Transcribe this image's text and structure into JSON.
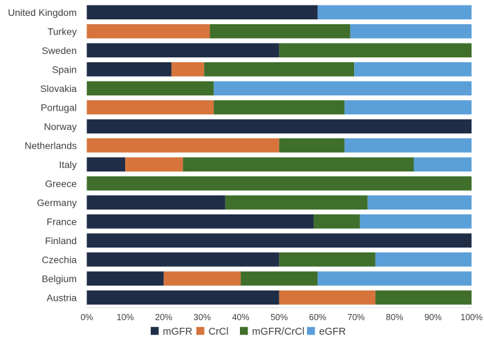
{
  "chart_data": {
    "type": "bar",
    "orientation": "horizontal",
    "stacked": true,
    "percent": true,
    "categories": [
      "United Kingdom",
      "Turkey",
      "Sweden",
      "Spain",
      "Slovakia",
      "Portugal",
      "Norway",
      "Netherlands",
      "Italy",
      "Greece",
      "Germany",
      "France",
      "Finland",
      "Czechia",
      "Belgium",
      "Austria"
    ],
    "series": [
      {
        "name": "mGFR",
        "color": "#1f2d47",
        "values": [
          60,
          0,
          50,
          22,
          0,
          0,
          100,
          0,
          10,
          0,
          36,
          59,
          100,
          50,
          20,
          50
        ]
      },
      {
        "name": "CrCl",
        "color": "#d6743c",
        "values": [
          0,
          32,
          0,
          8.5,
          0,
          33,
          0,
          50,
          15,
          0,
          0,
          0,
          0,
          0,
          20,
          25
        ]
      },
      {
        "name": "mGFR/CrCl",
        "color": "#3f6f2b",
        "values": [
          0,
          36.5,
          50,
          39,
          33,
          34,
          0,
          17,
          60,
          100,
          37,
          12,
          0,
          25,
          20,
          25
        ]
      },
      {
        "name": "eGFR",
        "color": "#5b9fd8",
        "values": [
          40,
          31.5,
          0,
          30.5,
          67,
          33,
          0,
          33,
          15,
          0,
          27,
          29,
          0,
          25,
          40,
          0
        ]
      }
    ],
    "xlim": [
      0,
      100
    ],
    "xticks": [
      "0%",
      "10%",
      "20%",
      "30%",
      "40%",
      "50%",
      "60%",
      "70%",
      "80%",
      "90%",
      "100%"
    ],
    "grid": false,
    "legend": "bottom",
    "title": "",
    "xlabel": "",
    "ylabel": ""
  }
}
